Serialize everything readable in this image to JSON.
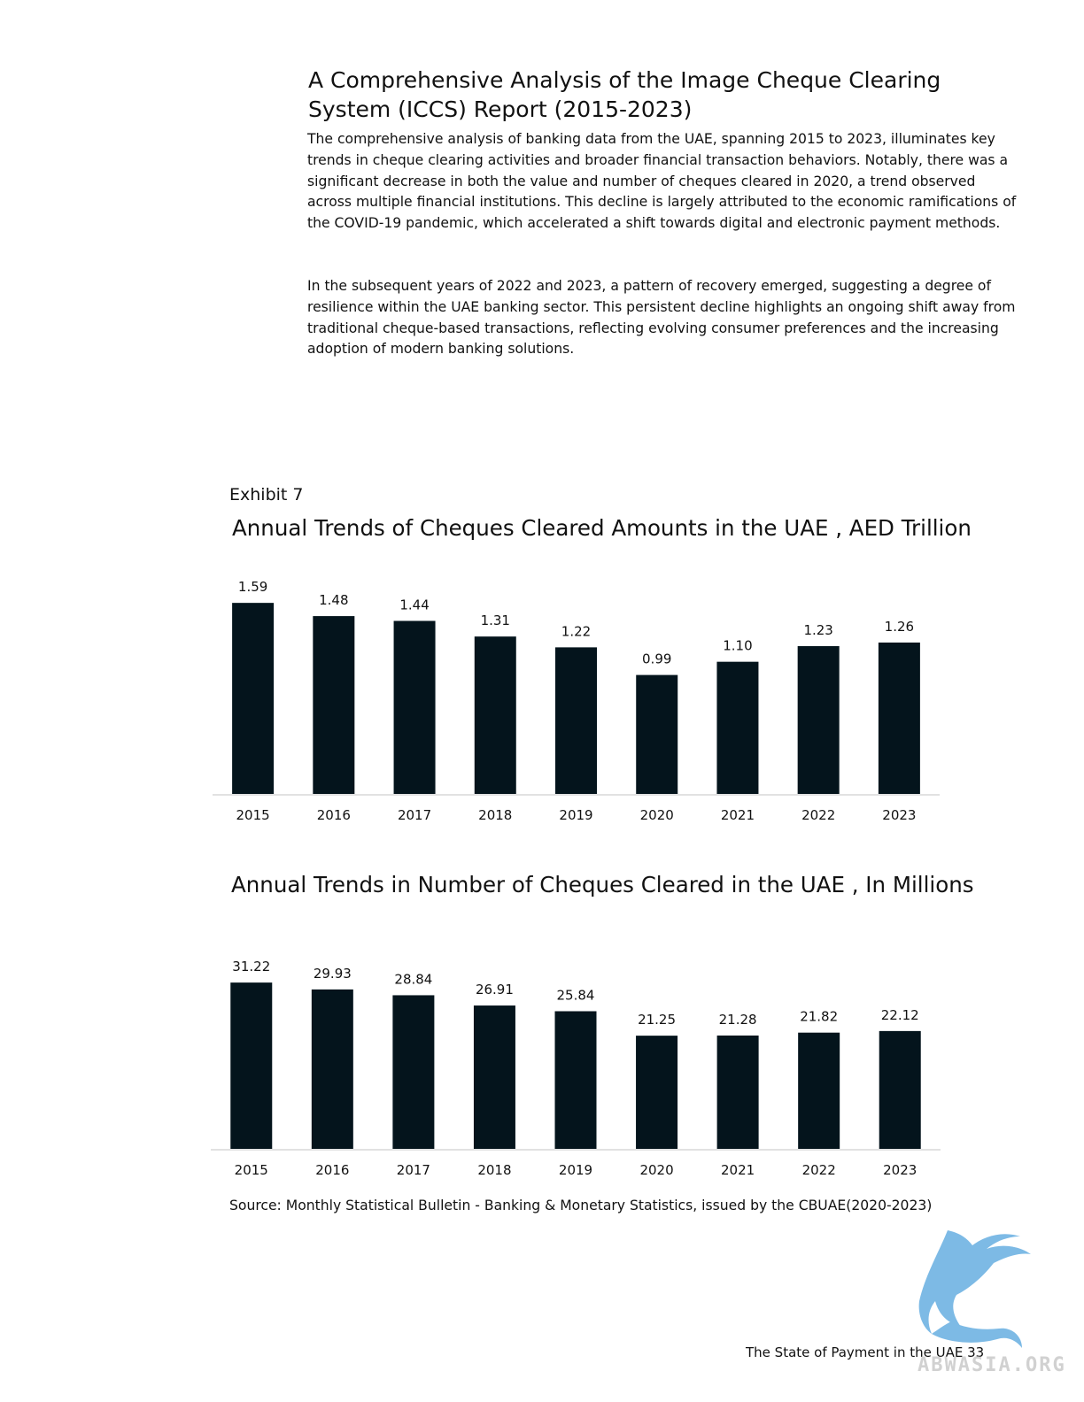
{
  "document": {
    "title": "A Comprehensive Analysis of the Image Cheque Clearing System (ICCS) Report (2015-2023)",
    "paragraphs": [
      "The comprehensive analysis of banking data from the UAE, spanning 2015 to 2023, illuminates key trends in cheque clearing activities and broader financial transaction behaviors. Notably, there was a significant decrease in both the value and number of cheques cleared in 2020, a trend observed across multiple financial institutions. This decline is largely attributed to the economic ramifications of the COVID-19 pandemic, which accelerated a shift towards digital and electronic payment methods.",
      "In the subsequent years of 2022 and 2023, a pattern of recovery emerged, suggesting a degree of resilience within the UAE banking sector. This persistent decline highlights an ongoing shift away from traditional cheque-based transactions, reflecting evolving consumer preferences and the increasing adoption of modern banking solutions."
    ],
    "exhibit_label": "Exhibit 7",
    "source": "Source: Monthly Statistical Bulletin - Banking & Monetary Statistics, issued by the CBUAE(2020-2023)",
    "footer": "The State of Payment in the UAE 33",
    "watermark": "ABWASIA.ORG"
  },
  "chart_data": [
    {
      "type": "bar",
      "title": "Annual Trends of Cheques Cleared Amounts in the UAE , AED Trillion",
      "categories": [
        "2015",
        "2016",
        "2017",
        "2018",
        "2019",
        "2020",
        "2021",
        "2022",
        "2023"
      ],
      "values": [
        1.59,
        1.48,
        1.44,
        1.31,
        1.22,
        0.99,
        1.1,
        1.23,
        1.26
      ],
      "value_labels": [
        "1.59",
        "1.48",
        "1.44",
        "1.31",
        "1.22",
        "0.99",
        "1.10",
        "1.23",
        "1.26"
      ],
      "xlabel": "",
      "ylabel": "",
      "ylim": [
        0,
        1.65
      ],
      "grid": false,
      "legend": "none",
      "bar_color": "#04141c"
    },
    {
      "type": "bar",
      "title": "Annual Trends in Number of Cheques Cleared in the UAE , In Millions",
      "categories": [
        "2015",
        "2016",
        "2017",
        "2018",
        "2019",
        "2020",
        "2021",
        "2022",
        "2023"
      ],
      "values": [
        31.22,
        29.93,
        28.84,
        26.91,
        25.84,
        21.25,
        21.28,
        21.82,
        22.12
      ],
      "value_labels": [
        "31.22",
        "29.93",
        "28.84",
        "26.91",
        "25.84",
        "21.25",
        "21.28",
        "21.82",
        "22.12"
      ],
      "xlabel": "",
      "ylabel": "",
      "ylim": [
        0,
        33.4
      ],
      "grid": false,
      "legend": "none",
      "bar_color": "#04141c"
    }
  ]
}
